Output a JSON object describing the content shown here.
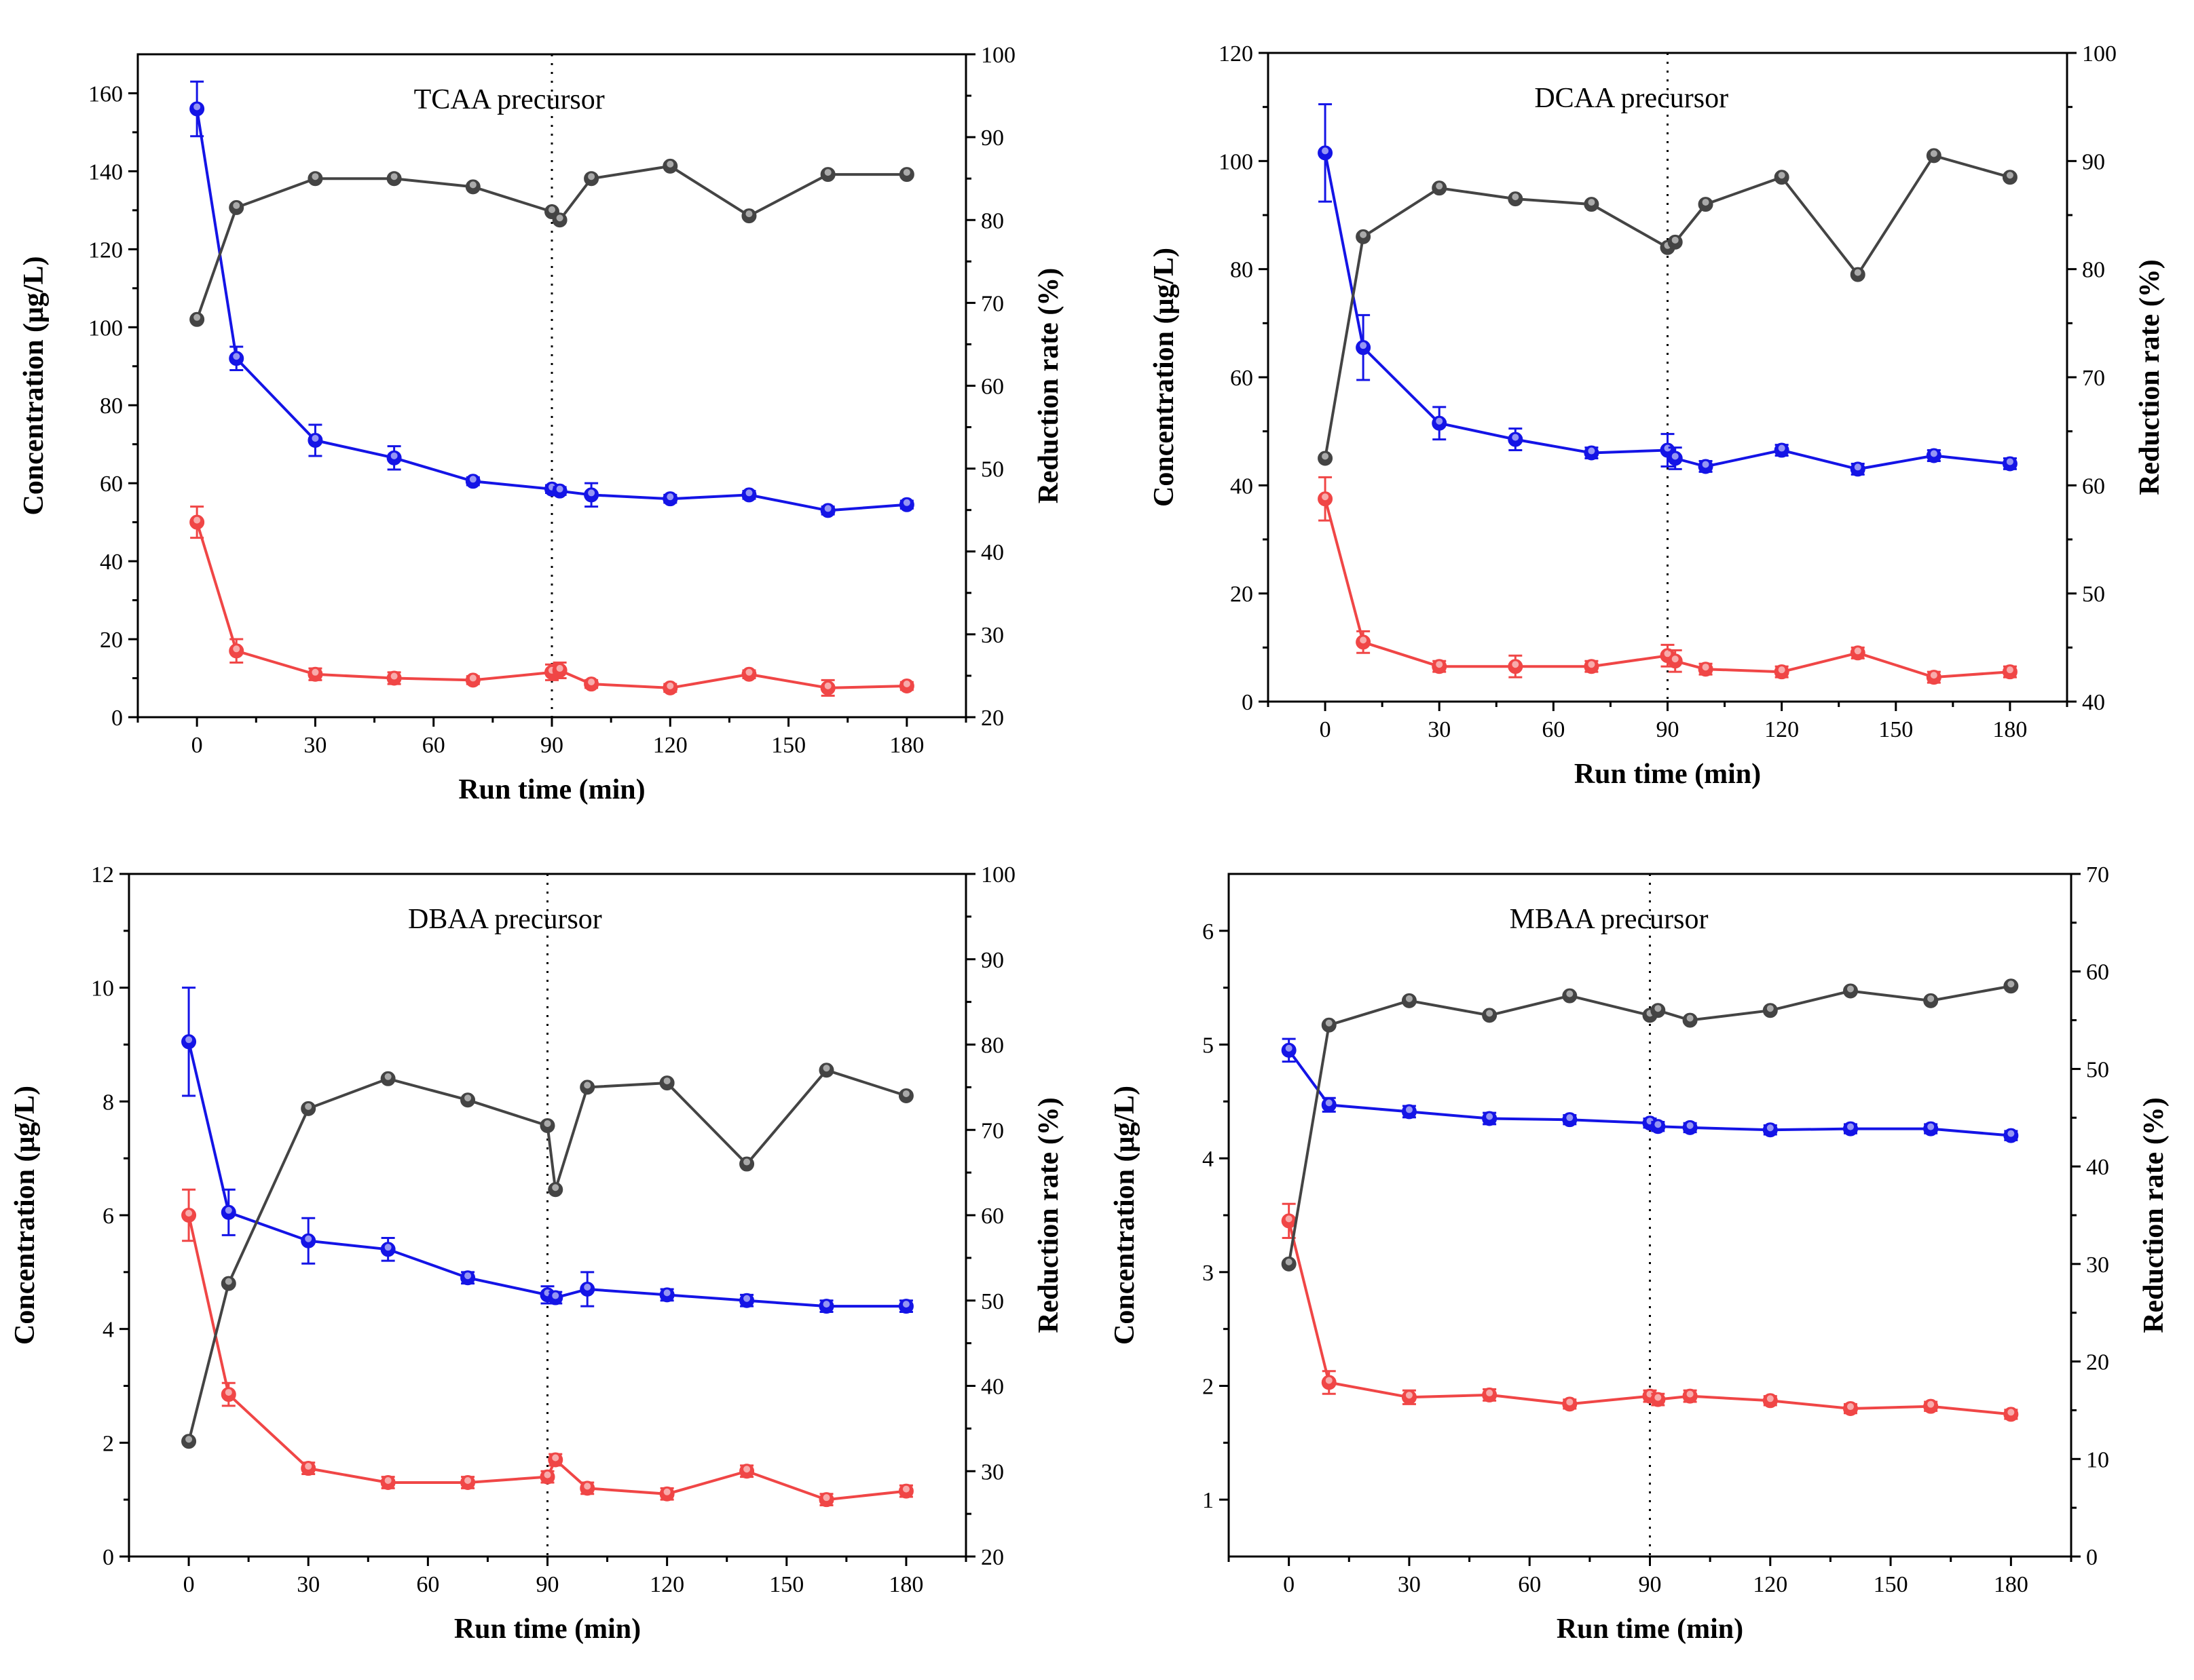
{
  "series_colors": {
    "blue": "#1414e6",
    "red": "#f04646",
    "gray": "#444444"
  },
  "chart_data": [
    {
      "type": "line",
      "title": "TCAA precursor",
      "xlabel": "Run time (min)",
      "ylabel": "Concentration (μg/L)",
      "y2label": "Reduction rate (%)",
      "xlim": [
        -15,
        195
      ],
      "xticks": [
        0,
        30,
        60,
        90,
        120,
        150,
        180
      ],
      "ylim": [
        0,
        170
      ],
      "yticks": [
        0,
        20,
        40,
        60,
        80,
        100,
        120,
        140,
        160
      ],
      "y2lim": [
        20,
        100
      ],
      "y2ticks": [
        20,
        30,
        40,
        50,
        60,
        70,
        80,
        90,
        100
      ],
      "vline_x": 90,
      "x": [
        0,
        10,
        30,
        50,
        70,
        90,
        92,
        100,
        120,
        140,
        160,
        180
      ],
      "series": [
        {
          "name": "blue",
          "axis": "left",
          "values": [
            156,
            92,
            71,
            66.5,
            60.5,
            58.5,
            58,
            57,
            56,
            57,
            53,
            54.5
          ],
          "err": [
            7,
            3,
            4,
            3,
            1,
            1,
            1,
            3,
            1,
            1,
            1,
            1
          ]
        },
        {
          "name": "red",
          "axis": "left",
          "values": [
            50,
            17,
            11,
            10,
            9.5,
            11.5,
            12,
            8.5,
            7.5,
            11,
            7.5,
            8
          ],
          "err": [
            4,
            3,
            1.5,
            1.5,
            1,
            2,
            2,
            1,
            1,
            1,
            2,
            1
          ]
        },
        {
          "name": "gray",
          "axis": "right",
          "values": [
            68,
            81.5,
            85,
            85,
            84,
            81,
            80,
            85,
            86.5,
            80.5,
            85.5,
            85.5
          ]
        }
      ]
    },
    {
      "type": "line",
      "title": "DCAA precursor",
      "xlabel": "Run time (min)",
      "ylabel": "Concentration (μg/L)",
      "y2label": "Reduction rate (%)",
      "xlim": [
        -15,
        195
      ],
      "xticks": [
        0,
        30,
        60,
        90,
        120,
        150,
        180
      ],
      "ylim": [
        0,
        120
      ],
      "yticks": [
        0,
        20,
        40,
        60,
        80,
        100,
        120
      ],
      "y2lim": [
        40,
        100
      ],
      "y2ticks": [
        40,
        50,
        60,
        70,
        80,
        90,
        100
      ],
      "vline_x": 90,
      "x": [
        0,
        10,
        30,
        50,
        70,
        90,
        92,
        100,
        120,
        140,
        160,
        180
      ],
      "series": [
        {
          "name": "blue",
          "axis": "left",
          "values": [
            101.5,
            65.5,
            51.5,
            48.5,
            46,
            46.5,
            45,
            43.5,
            46.5,
            43,
            45.5,
            44
          ],
          "err": [
            9,
            6,
            3,
            2,
            1,
            3,
            2,
            1,
            1,
            1,
            1,
            1
          ]
        },
        {
          "name": "red",
          "axis": "left",
          "values": [
            37.5,
            11,
            6.5,
            6.5,
            6.5,
            8.5,
            7.5,
            6,
            5.5,
            9,
            4.5,
            5.5
          ],
          "err": [
            4,
            2,
            1,
            2,
            1,
            2,
            2,
            1,
            1,
            1,
            1,
            1
          ]
        },
        {
          "name": "gray",
          "axis": "right",
          "values": [
            62.5,
            83,
            87.5,
            86.5,
            86,
            82,
            82.5,
            86,
            88.5,
            79.5,
            90.5,
            88.5
          ]
        }
      ]
    },
    {
      "type": "line",
      "title": "DBAA precursor",
      "xlabel": "Run time (min)",
      "ylabel": "Concentration (μg/L)",
      "y2label": "Reduction rate (%)",
      "xlim": [
        -15,
        195
      ],
      "xticks": [
        0,
        30,
        60,
        90,
        120,
        150,
        180
      ],
      "ylim": [
        0,
        12
      ],
      "yticks": [
        0,
        2,
        4,
        6,
        8,
        10,
        12
      ],
      "y2lim": [
        20,
        100
      ],
      "y2ticks": [
        20,
        30,
        40,
        50,
        60,
        70,
        80,
        90,
        100
      ],
      "vline_x": 90,
      "x": [
        0,
        10,
        30,
        50,
        70,
        90,
        92,
        100,
        120,
        140,
        160,
        180
      ],
      "series": [
        {
          "name": "blue",
          "axis": "left",
          "values": [
            9.05,
            6.05,
            5.55,
            5.4,
            4.9,
            4.6,
            4.55,
            4.7,
            4.6,
            4.5,
            4.4,
            4.4
          ],
          "err": [
            0.95,
            0.4,
            0.4,
            0.2,
            0.1,
            0.15,
            0.1,
            0.3,
            0.1,
            0.1,
            0.1,
            0.1
          ]
        },
        {
          "name": "red",
          "axis": "left",
          "values": [
            6.0,
            2.85,
            1.55,
            1.3,
            1.3,
            1.4,
            1.7,
            1.2,
            1.1,
            1.5,
            1.0,
            1.15
          ],
          "err": [
            0.45,
            0.2,
            0.1,
            0.1,
            0.1,
            0.1,
            0.1,
            0.1,
            0.1,
            0.1,
            0.1,
            0.1
          ]
        },
        {
          "name": "gray",
          "axis": "right",
          "values": [
            33.5,
            52,
            72.5,
            76,
            73.5,
            70.5,
            63,
            75,
            75.5,
            66,
            77,
            74
          ]
        }
      ]
    },
    {
      "type": "line",
      "title": "MBAA precursor",
      "xlabel": "Run time (min)",
      "ylabel": "Concentration (μg/L)",
      "y2label": "Reduction rate (%)",
      "xlim": [
        -15,
        195
      ],
      "xticks": [
        0,
        30,
        60,
        90,
        120,
        150,
        180
      ],
      "ylim": [
        0.5,
        6.5
      ],
      "yticks": [
        1,
        2,
        3,
        4,
        5,
        6
      ],
      "y2lim": [
        0,
        70
      ],
      "y2ticks": [
        0,
        10,
        20,
        30,
        40,
        50,
        60,
        70
      ],
      "vline_x": 90,
      "x": [
        0,
        10,
        30,
        50,
        70,
        90,
        92,
        100,
        120,
        140,
        160,
        180
      ],
      "series": [
        {
          "name": "blue",
          "axis": "left",
          "values": [
            4.95,
            4.47,
            4.41,
            4.35,
            4.34,
            4.31,
            4.28,
            4.27,
            4.25,
            4.26,
            4.26,
            4.2
          ],
          "err": [
            0.1,
            0.06,
            0.05,
            0.05,
            0.04,
            0.04,
            0.04,
            0.04,
            0.04,
            0.04,
            0.04,
            0.04
          ]
        },
        {
          "name": "red",
          "axis": "left",
          "values": [
            3.45,
            2.03,
            1.9,
            1.92,
            1.84,
            1.91,
            1.88,
            1.91,
            1.87,
            1.8,
            1.82,
            1.75
          ],
          "err": [
            0.15,
            0.1,
            0.06,
            0.05,
            0.04,
            0.05,
            0.05,
            0.05,
            0.04,
            0.04,
            0.04,
            0.04
          ]
        },
        {
          "name": "gray",
          "axis": "right",
          "values": [
            30,
            54.5,
            57,
            55.5,
            57.5,
            55.5,
            56,
            55,
            56,
            58,
            57,
            58.5
          ]
        }
      ]
    }
  ]
}
